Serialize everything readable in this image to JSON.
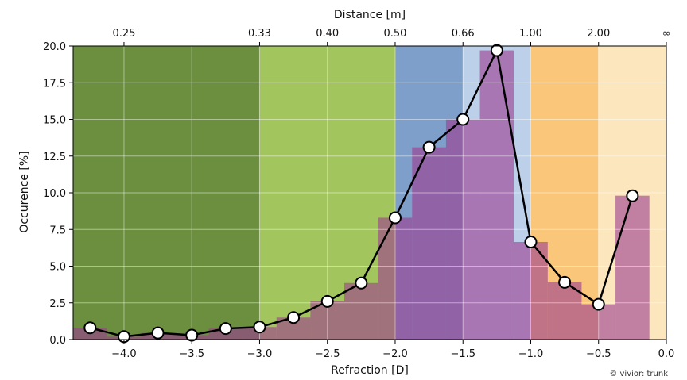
{
  "chart_data": {
    "type": "line",
    "xlabel": "Refraction [D]",
    "ylabel": "Occurence [%]",
    "top_axis_label": "Distance [m]",
    "credit": "© vivior: trunk",
    "xlim": [
      -4.375,
      0.0
    ],
    "ylim": [
      0,
      20
    ],
    "x_ticks": [
      -4.0,
      -3.5,
      -3.0,
      -2.5,
      -2.0,
      -1.5,
      -1.0,
      -0.5,
      0.0
    ],
    "x_tick_labels": [
      "−4.0",
      "−3.5",
      "−3.0",
      "−2.5",
      "−2.0",
      "−1.5",
      "−1.0",
      "−0.5",
      "0.0"
    ],
    "y_ticks": [
      0,
      2.5,
      5,
      7.5,
      10,
      12.5,
      15,
      17.5,
      20
    ],
    "y_tick_labels": [
      "0.0",
      "2.5",
      "5.0",
      "7.5",
      "10.0",
      "12.5",
      "15.0",
      "17.5",
      "20.0"
    ],
    "top_ticks": [
      {
        "at": -4.0,
        "label": "0.25"
      },
      {
        "at": -3.0,
        "label": "0.33"
      },
      {
        "at": -2.5,
        "label": "0.40"
      },
      {
        "at": -2.0,
        "label": "0.50"
      },
      {
        "at": -1.5,
        "label": "0.66"
      },
      {
        "at": -1.0,
        "label": "1.00"
      },
      {
        "at": -0.5,
        "label": "2.00"
      },
      {
        "at": 0.0,
        "label": "∞"
      }
    ],
    "grid": true,
    "background_zones": [
      {
        "from": -4.375,
        "to": -3.0,
        "color": "#6b8f3f"
      },
      {
        "from": -3.0,
        "to": -2.0,
        "color": "#a3c55d"
      },
      {
        "from": -2.0,
        "to": -1.5,
        "color": "#7f9fcb"
      },
      {
        "from": -1.5,
        "to": -1.0,
        "color": "#bcd0ea"
      },
      {
        "from": -1.0,
        "to": -0.5,
        "color": "#f9c67a"
      },
      {
        "from": -0.5,
        "to": 0.0,
        "color": "#fce6bd"
      }
    ],
    "series": [
      {
        "x": [
          -4.25,
          -4.0,
          -3.75,
          -3.5,
          -3.25,
          -3.0,
          -2.75,
          -2.5,
          -2.25,
          -2.0,
          -1.75,
          -1.5,
          -1.25,
          -1.0,
          -0.75,
          -0.5,
          -0.25
        ],
        "values": [
          0.8,
          0.2,
          0.45,
          0.3,
          0.75,
          0.85,
          1.5,
          2.6,
          3.85,
          8.3,
          13.1,
          15.0,
          19.7,
          6.65,
          3.9,
          2.4,
          9.8
        ],
        "style": "line-with-markers",
        "color": "#000000"
      }
    ],
    "histogram": {
      "bin_width": 0.25,
      "bin_centers": [
        -4.25,
        -4.0,
        -3.75,
        -3.5,
        -3.25,
        -3.0,
        -2.75,
        -2.5,
        -2.25,
        -2.0,
        -1.75,
        -1.5,
        -1.25,
        -1.0,
        -0.75,
        -0.5,
        -0.25
      ],
      "values": [
        0.8,
        0.2,
        0.45,
        0.3,
        0.75,
        0.85,
        1.5,
        2.6,
        3.85,
        8.3,
        13.1,
        15.0,
        19.7,
        6.65,
        3.9,
        2.4,
        9.8
      ],
      "color": "#9c3f8f"
    }
  }
}
